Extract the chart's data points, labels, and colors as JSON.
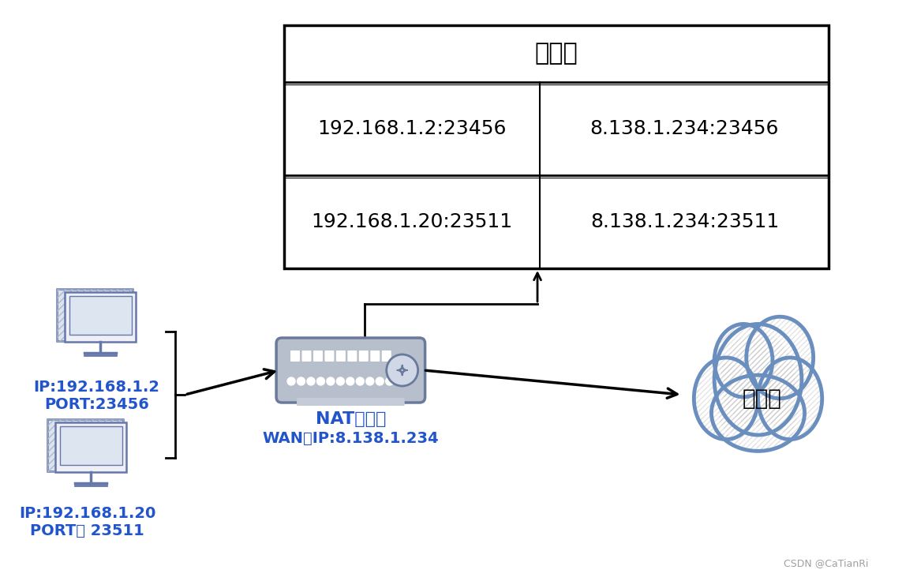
{
  "bg_color": "#ffffff",
  "table_title": "映射表",
  "table_rows": [
    [
      "192.168.1.2:23456",
      "8.138.1.234:23456"
    ],
    [
      "192.168.1.20:23511",
      "8.138.1.234:23511"
    ]
  ],
  "pc1_label1": "IP:192.168.1.2",
  "pc1_label2": "PORT:23456",
  "pc2_label1": "IP:192.168.1.20",
  "pc2_label2": "PORT： 23511",
  "nat_label1": "NAT服务器",
  "nat_label2": "WAN口IP:8.138.1.234",
  "cloud_label": "广域网",
  "label_color": "#2255cc",
  "nat_fill_color": "#b8bfcc",
  "nat_border_color": "#6a7a9a",
  "cloud_border_color": "#6a8fbf",
  "arrow_color": "#000000",
  "csdn_text": "CSDN @CaTianRi"
}
